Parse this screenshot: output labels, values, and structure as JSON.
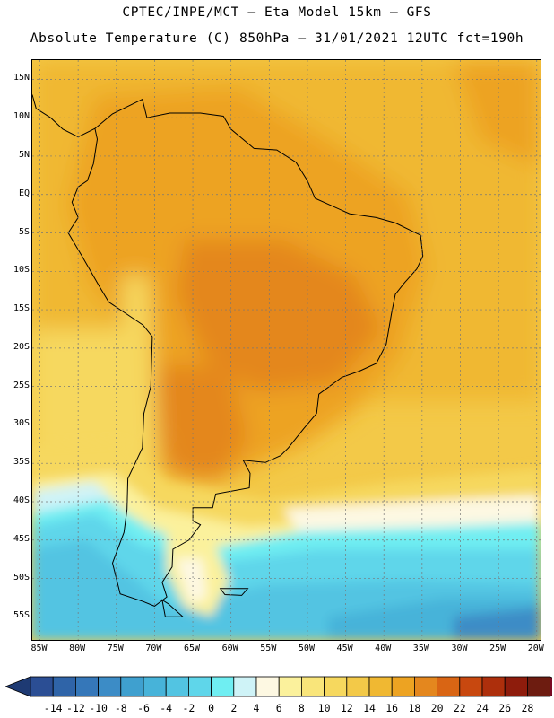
{
  "title": {
    "line1": "CPTEC/INPE/MCT —  Eta Model 15km — GFS",
    "line2": "Absolute Temperature (C) 850hPa — 31/01/2021 12UTC fct=190h"
  },
  "map": {
    "extent": {
      "lon_min": -86,
      "lon_max": -19.5,
      "lat_min": -58,
      "lat_max": 17.5
    },
    "lat_ticks": [
      15,
      10,
      5,
      0,
      -5,
      -10,
      -15,
      -20,
      -25,
      -30,
      -35,
      -40,
      -45,
      -50,
      -55
    ],
    "lat_labels": [
      "15N",
      "10N",
      "5N",
      "EQ",
      "5S",
      "10S",
      "15S",
      "20S",
      "25S",
      "30S",
      "35S",
      "40S",
      "45S",
      "50S",
      "55S"
    ],
    "lon_ticks": [
      -85,
      -80,
      -75,
      -70,
      -65,
      -60,
      -55,
      -50,
      -45,
      -40,
      -35,
      -30,
      -25,
      -20
    ],
    "lon_labels": [
      "85W",
      "80W",
      "75W",
      "70W",
      "65W",
      "60W",
      "55W",
      "50W",
      "45W",
      "40W",
      "35W",
      "30W",
      "25W",
      "20W"
    ]
  },
  "colorbar": {
    "labels": [
      "-14",
      "-12",
      "-10",
      "-8",
      "-6",
      "-4",
      "-2",
      "0",
      "2",
      "4",
      "6",
      "8",
      "10",
      "12",
      "14",
      "16",
      "18",
      "20",
      "22",
      "24",
      "26",
      "28"
    ],
    "colors": [
      "#2b4e94",
      "#2f64a8",
      "#3577b9",
      "#3c8cc6",
      "#3fa0cf",
      "#47b3d9",
      "#52c4e2",
      "#5fd6ea",
      "#6feef2",
      "#cff3f7",
      "#fdf8e2",
      "#fbf19c",
      "#f9e57a",
      "#f6d85e",
      "#f3c948",
      "#f0b832",
      "#eda322",
      "#e4871e",
      "#d96514",
      "#c8480f",
      "#ad2f0c",
      "#8e1c0c",
      "#6d1c10"
    ],
    "under_color": "#1e3a73",
    "over_color": "#7a0a24"
  }
}
